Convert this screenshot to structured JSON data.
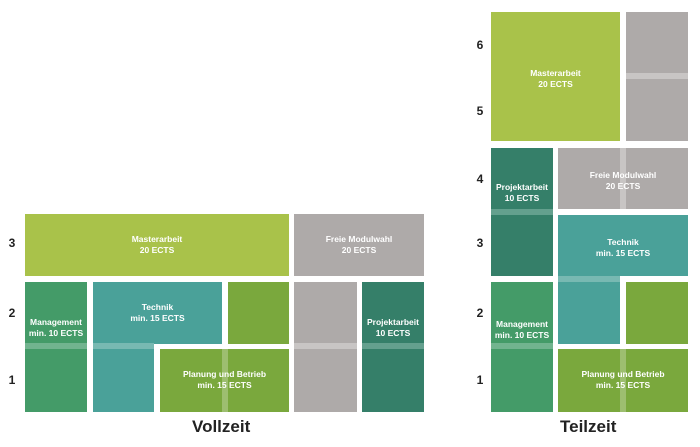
{
  "vollzeit": {
    "title": "Vollzeit",
    "row_numbers": [
      "3",
      "2",
      "1"
    ],
    "blocks": {
      "masterarbeit": [
        "Masterarbeit",
        "20 ECTS"
      ],
      "freie_modulwahl": [
        "Freie Modulwahl",
        "20 ECTS"
      ],
      "management": [
        "Management",
        "min. 10 ECTS"
      ],
      "technik": [
        "Technik",
        "min. 15 ECTS"
      ],
      "projektarbeit": [
        "Projektarbeit",
        "10 ECTS"
      ],
      "planung_und_betrieb": [
        "Planung und Betrieb",
        "min. 15 ECTS"
      ]
    }
  },
  "teilzeit": {
    "title": "Teilzeit",
    "row_numbers": [
      "6",
      "5",
      "4",
      "3",
      "2",
      "1"
    ],
    "blocks": {
      "masterarbeit": [
        "Masterarbeit",
        "20 ECTS"
      ],
      "projektarbeit": [
        "Projektarbeit",
        "10 ECTS"
      ],
      "freie_modulwahl": [
        "Freie Modulwahl",
        "20 ECTS"
      ],
      "technik": [
        "Technik",
        "min. 15 ECTS"
      ],
      "management": [
        "Management",
        "min. 10 ECTS"
      ],
      "planung_und_betrieb": [
        "Planung und Betrieb",
        "min. 15 ECTS"
      ]
    }
  },
  "colors": {
    "masterarbeit": "#a9c24a",
    "freie_modulwahl": "#aeaaa9",
    "technik": "#4aa199",
    "management": "#449b68",
    "planung_und_betrieb": "#7aa83d",
    "projektarbeit": "#357f69"
  }
}
